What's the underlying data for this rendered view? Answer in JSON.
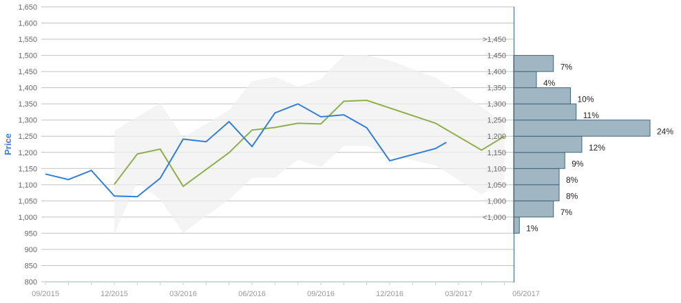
{
  "chart_data": {
    "type": "line",
    "ylabel": "Price",
    "ylim": [
      800,
      1650
    ],
    "yticks": [
      "800",
      "850",
      "900",
      "950",
      "1,000",
      "1,050",
      "1,100",
      "1,150",
      "1,200",
      "1,250",
      "1,300",
      "1,350",
      "1,400",
      "1,450",
      "1,500",
      "1,550",
      "1,600",
      "1,650"
    ],
    "xlim": [
      "2015-09",
      "2017-05"
    ],
    "xtick_labels": [
      "09/2015",
      "12/2015",
      "03/2016",
      "06/2016",
      "09/2016",
      "12/2016",
      "03/2017",
      "05/2017"
    ],
    "grid": true,
    "colors": {
      "price": "#2f7ed8",
      "forecast": "#8bb04a",
      "range": "#efefef",
      "histogram": "#a0b6c3",
      "histogram_border": "#3f6478"
    },
    "series": [
      {
        "key": "price",
        "x": [
          "2015-09",
          "2015-10",
          "2015-11",
          "2015-12",
          "2016-01",
          "2016-02",
          "2016-03",
          "2016-04",
          "2016-05",
          "2016-06",
          "2016-07",
          "2016-08",
          "2016-09",
          "2016-10",
          "2016-11",
          "2016-12",
          "2017-02",
          "2017-02-15"
        ],
        "values": [
          1133,
          1116,
          1144,
          1065,
          1063,
          1120,
          1241,
          1233,
          1295,
          1218,
          1322,
          1350,
          1310,
          1316,
          1276,
          1174,
          1212,
          1231
        ]
      },
      {
        "key": "forecast",
        "x": [
          "2015-12",
          "2016-01",
          "2016-02",
          "2016-03",
          "2016-05",
          "2016-06",
          "2016-07",
          "2016-08",
          "2016-09",
          "2016-10",
          "2016-11",
          "2017-02",
          "2017-04",
          "2017-05"
        ],
        "values": [
          1101,
          1195,
          1210,
          1095,
          1199,
          1269,
          1277,
          1290,
          1288,
          1358,
          1361,
          1290,
          1207,
          1250
        ]
      },
      {
        "key": "range",
        "x": [
          "2015-12",
          "2016-01",
          "2016-02",
          "2016-03",
          "2016-05",
          "2016-06",
          "2016-07",
          "2016-08",
          "2016-09",
          "2016-10",
          "2016-11",
          "2016-12",
          "2017-02",
          "2017-04",
          "2017-05"
        ],
        "high": [
          1267,
          1310,
          1352,
          1246,
          1331,
          1420,
          1433,
          1403,
          1426,
          1501,
          1501,
          1484,
          1431,
          1341,
          1290
        ],
        "low": [
          948,
          1107,
          1054,
          952,
          1054,
          1122,
          1122,
          1178,
          1154,
          1220,
          1220,
          1192,
          1160,
          1069,
          1114
        ]
      }
    ],
    "histogram": {
      "bins": [
        "<1,000",
        "1,000",
        "1,050",
        "1,100",
        "1,150",
        "1,200",
        "1,250",
        "1,300",
        "1,350",
        "1,400",
        "1,450",
        ">1,450"
      ],
      "percent_labels": [
        "1%",
        "7%",
        "8%",
        "8%",
        "9%",
        "12%",
        "24%",
        "11%",
        "10%",
        "4%",
        "7%"
      ],
      "values": [
        1,
        7,
        8,
        8,
        9,
        12,
        24,
        11,
        10,
        4,
        7
      ]
    }
  }
}
